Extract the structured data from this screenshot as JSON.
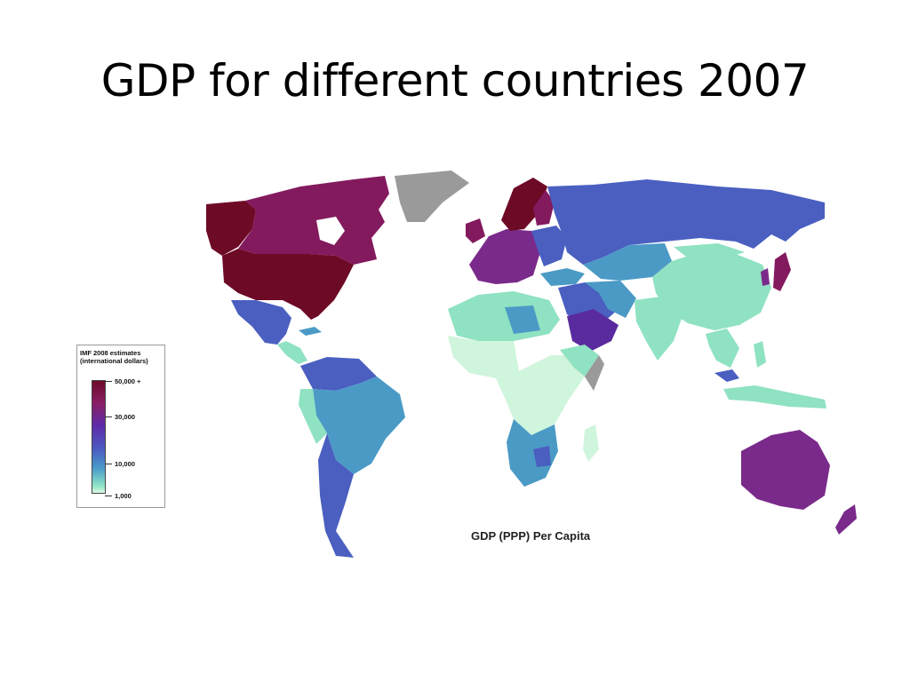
{
  "slide": {
    "title": "GDP for different countries 2007"
  },
  "map": {
    "caption": "GDP (PPP) Per Capita",
    "legend": {
      "title_line1": "IMF 2008 estimates",
      "title_line2": "(international dollars)",
      "ticks": [
        "50,000 +",
        "30,000",
        "10,000",
        "1,000"
      ]
    },
    "colors": {
      "very_high": "#6d0a26",
      "high": "#831a5e",
      "upper_mid": "#7a2a8a",
      "mid": "#4a5fc0",
      "lower_mid": "#4b9ac6",
      "low": "#8fe2c2",
      "very_low": "#cff5dc",
      "no_data": "#9a9a9a"
    }
  }
}
